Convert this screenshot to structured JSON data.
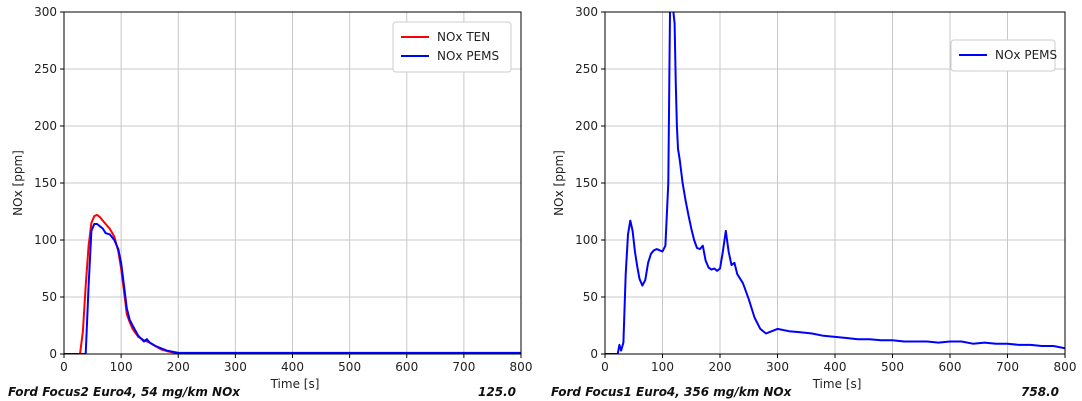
{
  "chart_data": [
    {
      "type": "line",
      "xlabel": "Time [s]",
      "ylabel": "NOx [ppm]",
      "xlim": [
        0,
        800
      ],
      "ylim": [
        0,
        300
      ],
      "xticks": [
        "0",
        "100",
        "200",
        "300",
        "400",
        "500",
        "600",
        "700",
        "800"
      ],
      "yticks": [
        "0",
        "50",
        "100",
        "150",
        "200",
        "250",
        "300"
      ],
      "grid": true,
      "legend": "top-right",
      "caption": "Ford Focus2 Euro4, 54 mg/km NOx",
      "value_label": "125.0",
      "series": [
        {
          "name": "NOx TEN",
          "color": "#ff0000",
          "x": [
            0,
            28,
            33,
            38,
            43,
            48,
            53,
            58,
            63,
            68,
            73,
            80,
            88,
            95,
            100,
            105,
            110,
            115,
            120,
            130,
            140,
            150,
            160,
            170,
            180,
            190,
            200,
            220,
            300,
            400,
            500,
            600,
            700,
            800
          ],
          "y": [
            0,
            0,
            20,
            60,
            95,
            115,
            121,
            122,
            120,
            117,
            114,
            110,
            103,
            90,
            75,
            55,
            35,
            28,
            22,
            15,
            12,
            10,
            7,
            4,
            2.5,
            1.5,
            1,
            0.5,
            0.3,
            0.2,
            0.2,
            0.2,
            0.2,
            0.2
          ]
        },
        {
          "name": "NOx PEMS",
          "color": "#0000ff",
          "x": [
            0,
            38,
            43,
            48,
            53,
            58,
            63,
            68,
            73,
            80,
            88,
            95,
            100,
            105,
            110,
            115,
            120,
            130,
            140,
            145,
            150,
            160,
            170,
            180,
            190,
            200,
            220,
            300,
            400,
            500,
            600,
            700,
            800
          ],
          "y": [
            0,
            0,
            60,
            108,
            114,
            114,
            112,
            110,
            106,
            105,
            100,
            92,
            80,
            60,
            40,
            30,
            25,
            16,
            11,
            13,
            10,
            7,
            5,
            3,
            2,
            1,
            1,
            1,
            1,
            1,
            1,
            1,
            1
          ]
        }
      ]
    },
    {
      "type": "line",
      "xlabel": "Time [s]",
      "ylabel": "NOx [ppm]",
      "xlim": [
        0,
        800
      ],
      "ylim": [
        0,
        300
      ],
      "xticks": [
        "0",
        "100",
        "200",
        "300",
        "400",
        "500",
        "600",
        "700",
        "800"
      ],
      "yticks": [
        "0",
        "50",
        "100",
        "150",
        "200",
        "250",
        "300"
      ],
      "grid": true,
      "legend": "top-right",
      "caption": "Ford Focus1 Euro4, 356 mg/km NOx",
      "value_label": "758.0",
      "series": [
        {
          "name": "NOx PEMS",
          "color": "#0000ff",
          "x": [
            0,
            22,
            25,
            28,
            32,
            36,
            40,
            44,
            48,
            52,
            56,
            60,
            65,
            70,
            75,
            80,
            85,
            90,
            95,
            100,
            105,
            110,
            113,
            115,
            117,
            119,
            121,
            123,
            125,
            127,
            130,
            135,
            140,
            145,
            150,
            155,
            160,
            165,
            170,
            175,
            180,
            185,
            190,
            195,
            200,
            205,
            210,
            215,
            220,
            225,
            230,
            240,
            250,
            260,
            270,
            280,
            290,
            300,
            320,
            340,
            360,
            380,
            400,
            420,
            440,
            460,
            480,
            500,
            520,
            540,
            560,
            580,
            600,
            620,
            640,
            660,
            680,
            700,
            720,
            740,
            760,
            780,
            800
          ],
          "y": [
            0,
            0,
            8,
            3,
            10,
            70,
            105,
            117,
            108,
            90,
            77,
            66,
            60,
            65,
            80,
            88,
            91,
            92,
            91,
            90,
            95,
            150,
            300,
            330,
            320,
            300,
            290,
            240,
            200,
            180,
            170,
            150,
            135,
            122,
            110,
            100,
            93,
            92,
            95,
            82,
            76,
            74,
            75,
            73,
            75,
            90,
            108,
            90,
            78,
            80,
            70,
            62,
            48,
            32,
            22,
            18,
            20,
            22,
            20,
            19,
            18,
            16,
            15,
            14,
            13,
            13,
            12,
            12,
            11,
            11,
            11,
            10,
            11,
            11,
            9,
            10,
            9,
            9,
            8,
            8,
            7,
            7,
            5
          ]
        }
      ]
    }
  ]
}
